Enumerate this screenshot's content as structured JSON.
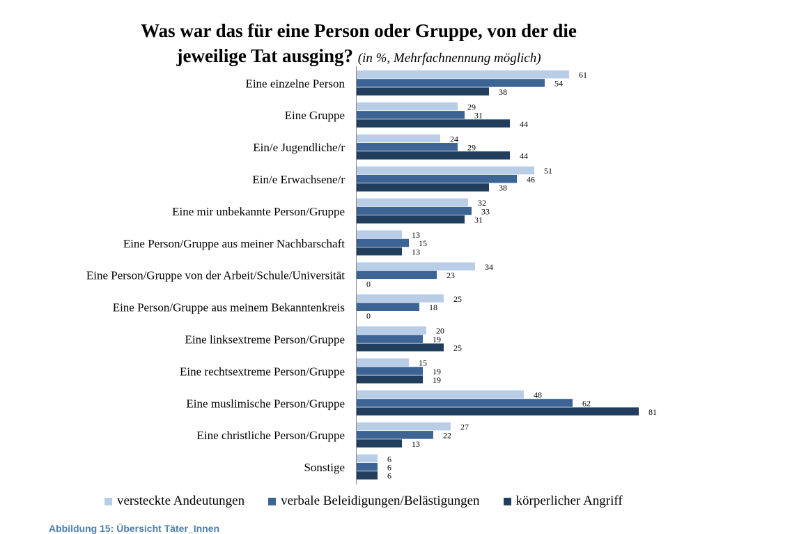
{
  "chart_data": {
    "type": "bar",
    "orientation": "horizontal",
    "title_line1": "Was war das für eine Person oder Gruppe, von der die",
    "title_line2": "jeweilige Tat ausging?",
    "subtitle": "(in %, Mehrfachnennung möglich)",
    "categories": [
      "Eine einzelne Person",
      "Eine Gruppe",
      "Ein/e Jugendliche/r",
      "Ein/e Erwachsene/r",
      "Eine mir unbekannte Person/Gruppe",
      "Eine Person/Gruppe aus meiner Nachbarschaft",
      "Eine Person/Gruppe von der Arbeit/Schule/Universität",
      "Eine Person/Gruppe aus meinem Bekanntenkreis",
      "Eine linksextreme Person/Gruppe",
      "Eine rechtsextreme Person/Gruppe",
      "Eine muslimische Person/Gruppe",
      "Eine christliche Person/Gruppe",
      "Sonstige"
    ],
    "series": [
      {
        "name": "versteckte Andeutungen",
        "color": "#b9cde6",
        "values": [
          61,
          29,
          24,
          51,
          32,
          13,
          34,
          25,
          20,
          15,
          48,
          27,
          6
        ]
      },
      {
        "name": "verbale Beleidigungen/Belästigungen",
        "color": "#3c6596",
        "values": [
          54,
          31,
          29,
          46,
          33,
          15,
          23,
          18,
          19,
          19,
          62,
          22,
          6
        ]
      },
      {
        "name": "körperlicher Angriff",
        "color": "#223e5f",
        "values": [
          38,
          44,
          44,
          38,
          31,
          13,
          0,
          0,
          25,
          19,
          81,
          13,
          6
        ]
      }
    ],
    "xlim": [
      0,
      90
    ],
    "grid": false,
    "legend_position": "bottom"
  },
  "caption": "Abbildung 15: Übersicht Täter_Innen"
}
